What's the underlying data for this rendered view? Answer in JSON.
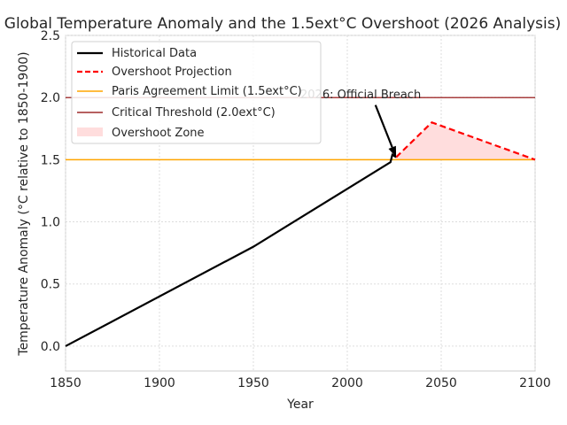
{
  "chart_data": {
    "type": "line",
    "title": "Global Temperature Anomaly and the 1.5$ext°C$ Overshoot (2026 Analysis)",
    "title_display": "Global Temperature Anomaly and the 1.5ext°C Overshoot (2026 Analysis)",
    "xlabel": "Year",
    "ylabel": "Temperature Anomaly ($^\\circ$C relative to 1850-1900)",
    "ylabel_display": "Temperature Anomaly (°C relative to 1850-1900)",
    "xlim": [
      1850,
      2100
    ],
    "ylim": [
      -0.2,
      2.5
    ],
    "xticks": [
      1850,
      1900,
      1950,
      2000,
      2050,
      2100
    ],
    "xtick_labels": [
      "1850",
      "1900",
      "1950",
      "2000",
      "2050",
      "2100"
    ],
    "yticks": [
      0.0,
      0.5,
      1.0,
      1.5,
      2.0,
      2.5
    ],
    "ytick_labels": [
      "0.0",
      "0.5",
      "1.0",
      "1.5",
      "2.0",
      "2.5"
    ],
    "grid": true,
    "legend_position": "upper-left",
    "series": [
      {
        "name": "Historical Data",
        "color": "#000000",
        "style": "solid",
        "x": [
          1850,
          1950,
          2023,
          2024,
          2026
        ],
        "y": [
          0.0,
          0.8,
          1.48,
          1.54,
          1.52
        ]
      },
      {
        "name": "Overshoot Projection",
        "color": "#ff0000",
        "style": "dashed",
        "x": [
          2026,
          2045,
          2100
        ],
        "y": [
          1.52,
          1.8,
          1.5
        ]
      }
    ],
    "hlines": [
      {
        "name": "Paris Agreement Limit (1.5$ext°C$)",
        "label_display": "Paris Agreement Limit (1.5ext°C)",
        "y": 1.5,
        "color": "#ffa500"
      },
      {
        "name": "Critical Threshold (2.0$ext°C$)",
        "label_display": "Critical Threshold (2.0ext°C)",
        "y": 2.0,
        "color": "#8b0000"
      }
    ],
    "fill": {
      "name": "Overshoot Zone",
      "color": "#ffdddd",
      "between": [
        1.5,
        "Overshoot Projection"
      ]
    },
    "annotation": {
      "text": "2026: Official Breach",
      "xy": [
        2026,
        1.52
      ],
      "xytext": [
        1975,
        2.03
      ],
      "arrow_from": [
        2015,
        1.94
      ]
    }
  }
}
